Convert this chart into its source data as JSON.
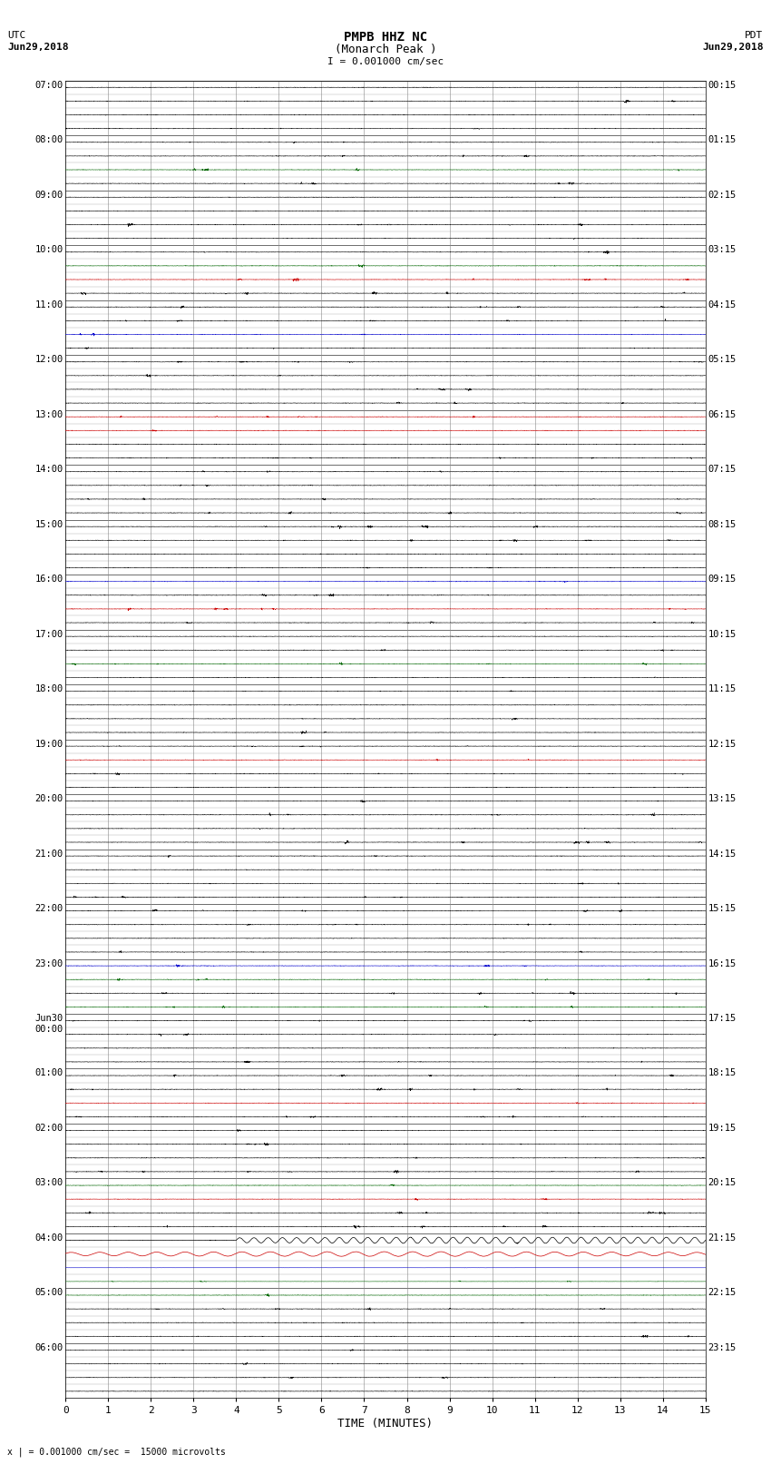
{
  "title_line1": "PMPB HHZ NC",
  "title_line2": "(Monarch Peak )",
  "scale_label": "I = 0.001000 cm/sec",
  "bottom_label": "x | = 0.001000 cm/sec =  15000 microvolts",
  "utc_label": "UTC",
  "utc_date": "Jun29,2018",
  "pdt_label": "PDT",
  "pdt_date": "Jun29,2018",
  "xlabel": "TIME (MINUTES)",
  "bg_color": "#ffffff",
  "trace_color": "#000000",
  "grid_color": "#888888",
  "xmin": 0,
  "xmax": 15,
  "xticks": [
    0,
    1,
    2,
    3,
    4,
    5,
    6,
    7,
    8,
    9,
    10,
    11,
    12,
    13,
    14,
    15
  ],
  "left_labels_major": [
    "07:00",
    "08:00",
    "09:00",
    "10:00",
    "11:00",
    "12:00",
    "13:00",
    "14:00",
    "15:00",
    "16:00",
    "17:00",
    "18:00",
    "19:00",
    "20:00",
    "21:00",
    "22:00",
    "23:00",
    "Jun30\n00:00",
    "01:00",
    "02:00",
    "03:00",
    "04:00",
    "05:00",
    "06:00"
  ],
  "right_labels_major": [
    "00:15",
    "01:15",
    "02:15",
    "03:15",
    "04:15",
    "05:15",
    "06:15",
    "07:15",
    "08:15",
    "09:15",
    "10:15",
    "11:15",
    "12:15",
    "13:15",
    "14:15",
    "15:15",
    "16:15",
    "17:15",
    "18:15",
    "19:15",
    "20:15",
    "21:15",
    "22:15",
    "23:15"
  ],
  "num_hours": 23,
  "traces_per_hour": 4,
  "event_hour": 21,
  "noise_base_amp": 0.025
}
